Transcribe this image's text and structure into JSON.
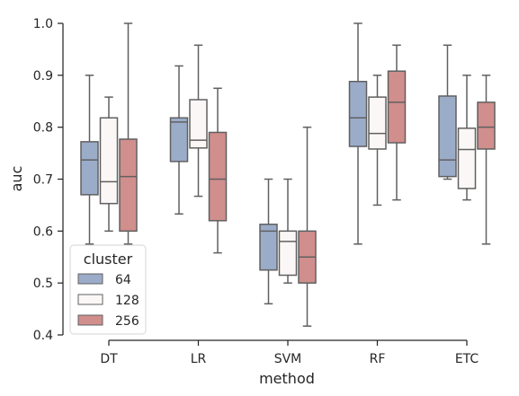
{
  "chart_data": {
    "type": "box",
    "xlabel": "method",
    "ylabel": "auc",
    "categories": [
      "DT",
      "LR",
      "SVM",
      "RF",
      "ETC"
    ],
    "ylim": [
      0.4,
      1.0
    ],
    "yticks": [
      "0.4",
      "0.5",
      "0.6",
      "0.7",
      "0.8",
      "0.9",
      "1.0"
    ],
    "grid": false,
    "legend": {
      "title": "cluster",
      "placement": "lower-left"
    },
    "series": [
      {
        "name": "64",
        "color": "#9bacc9",
        "boxes": [
          {
            "min": 0.575,
            "q1": 0.67,
            "median": 0.737,
            "q3": 0.772,
            "max": 0.9
          },
          {
            "min": 0.633,
            "q1": 0.734,
            "median": 0.81,
            "q3": 0.818,
            "max": 0.918
          },
          {
            "min": 0.46,
            "q1": 0.525,
            "median": 0.6,
            "q3": 0.613,
            "max": 0.7
          },
          {
            "min": 0.575,
            "q1": 0.763,
            "median": 0.818,
            "q3": 0.888,
            "max": 1.0
          },
          {
            "min": 0.7,
            "q1": 0.705,
            "median": 0.737,
            "q3": 0.86,
            "max": 0.958
          }
        ]
      },
      {
        "name": "128",
        "color": "#fbf7f6",
        "boxes": [
          {
            "min": 0.6,
            "q1": 0.653,
            "median": 0.695,
            "q3": 0.818,
            "max": 0.858
          },
          {
            "min": 0.667,
            "q1": 0.76,
            "median": 0.775,
            "q3": 0.853,
            "max": 0.958
          },
          {
            "min": 0.5,
            "q1": 0.515,
            "median": 0.58,
            "q3": 0.6,
            "max": 0.7
          },
          {
            "min": 0.65,
            "q1": 0.758,
            "median": 0.788,
            "q3": 0.858,
            "max": 0.9
          },
          {
            "min": 0.66,
            "q1": 0.682,
            "median": 0.757,
            "q3": 0.798,
            "max": 0.9
          }
        ]
      },
      {
        "name": "256",
        "color": "#d08e8d",
        "boxes": [
          {
            "min": 0.575,
            "q1": 0.6,
            "median": 0.705,
            "q3": 0.777,
            "max": 1.0
          },
          {
            "min": 0.558,
            "q1": 0.62,
            "median": 0.7,
            "q3": 0.79,
            "max": 0.875
          },
          {
            "min": 0.417,
            "q1": 0.5,
            "median": 0.55,
            "q3": 0.6,
            "max": 0.8
          },
          {
            "min": 0.66,
            "q1": 0.77,
            "median": 0.848,
            "q3": 0.908,
            "max": 0.958
          },
          {
            "min": 0.575,
            "q1": 0.758,
            "median": 0.8,
            "q3": 0.848,
            "max": 0.9
          }
        ]
      }
    ]
  },
  "colors": {
    "box_edge": "#606060",
    "axis": "#262626"
  }
}
